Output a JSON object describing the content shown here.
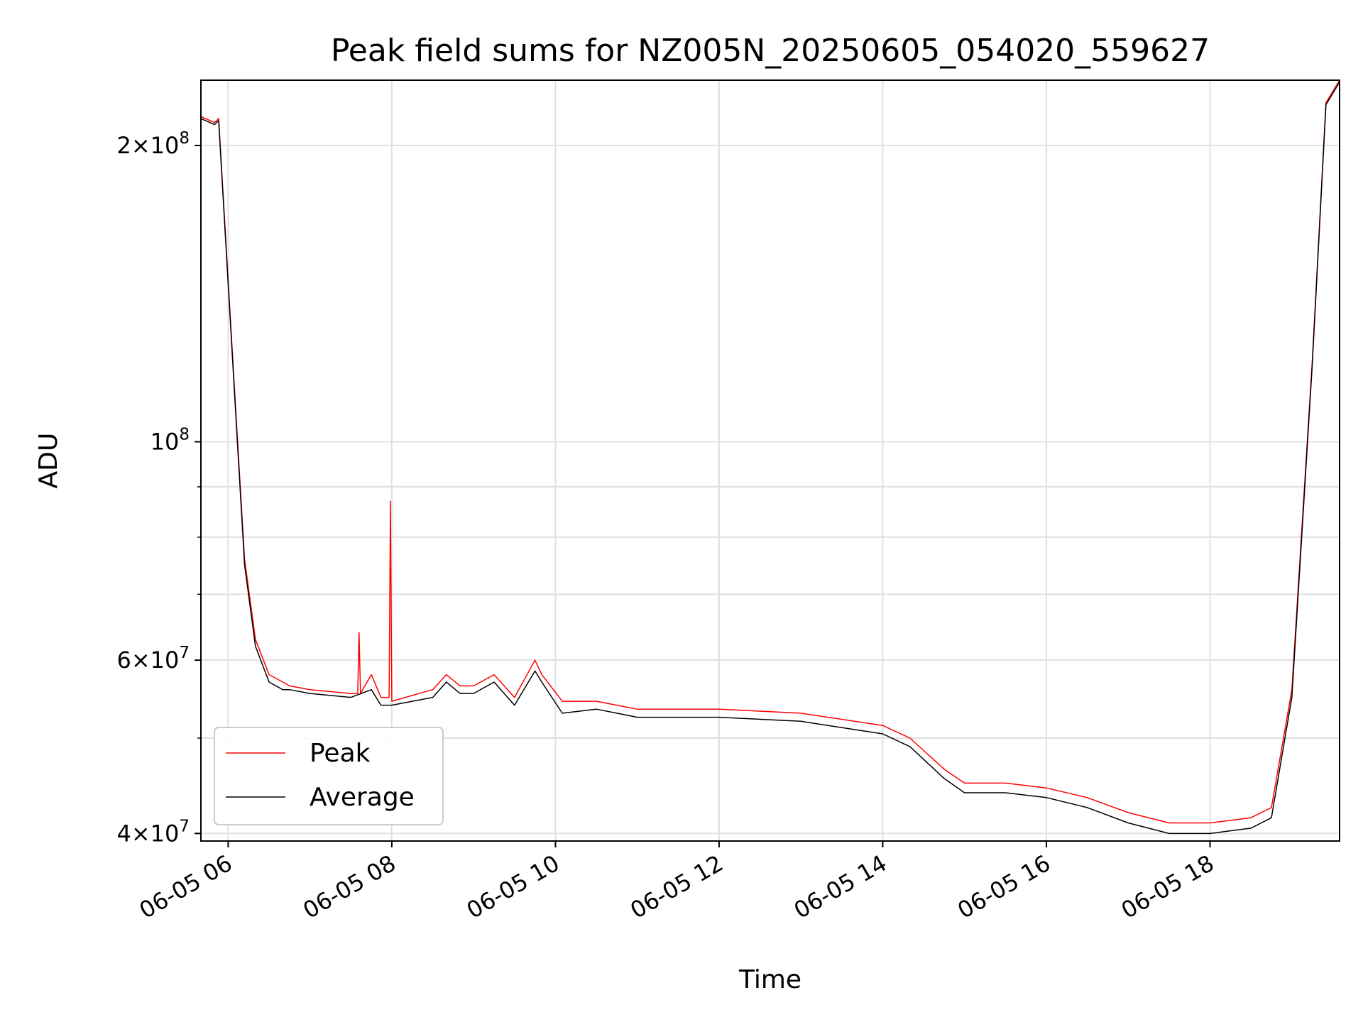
{
  "chart_data": {
    "type": "line",
    "title": "Peak field sums for NZ005N_20250605_054020_559627",
    "xlabel": "Time",
    "ylabel": "ADU",
    "yscale": "log",
    "xlim": [
      "2025-06-05 05:40",
      "2025-06-05 19:35"
    ],
    "ylim": [
      39300000,
      233000000
    ],
    "xticks": [
      "06-05 06",
      "06-05 08",
      "06-05 10",
      "06-05 12",
      "06-05 14",
      "06-05 16",
      "06-05 18"
    ],
    "xtick_values": [
      "2025-06-05 06:00",
      "2025-06-05 08:00",
      "2025-06-05 10:00",
      "2025-06-05 12:00",
      "2025-06-05 14:00",
      "2025-06-05 16:00",
      "2025-06-05 18:00"
    ],
    "yticks": [
      {
        "value": 200000000,
        "mant": "2",
        "exp": "8"
      },
      {
        "value": 100000000,
        "mant": "",
        "exp": "8"
      },
      {
        "value": 60000000,
        "mant": "6",
        "exp": "7"
      },
      {
        "value": 40000000,
        "mant": "4",
        "exp": "7"
      }
    ],
    "grid": true,
    "legend": {
      "position": "lower-left",
      "entries": [
        "Peak",
        "Average"
      ]
    },
    "colors": {
      "Peak": "#ff0000",
      "Average": "#000000",
      "grid": "#e0e0e0"
    },
    "series": [
      {
        "name": "Average",
        "x": [
          "2025-06-05 05:40",
          "2025-06-05 05:50",
          "2025-06-05 05:53",
          "2025-06-05 06:05",
          "2025-06-05 06:12",
          "2025-06-05 06:20",
          "2025-06-05 06:30",
          "2025-06-05 06:40",
          "2025-06-05 06:45",
          "2025-06-05 07:00",
          "2025-06-05 07:30",
          "2025-06-05 07:45",
          "2025-06-05 07:52",
          "2025-06-05 08:00",
          "2025-06-05 08:30",
          "2025-06-05 08:40",
          "2025-06-05 08:50",
          "2025-06-05 09:00",
          "2025-06-05 09:15",
          "2025-06-05 09:30",
          "2025-06-05 09:45",
          "2025-06-05 09:50",
          "2025-06-05 10:05",
          "2025-06-05 10:30",
          "2025-06-05 10:45",
          "2025-06-05 11:00",
          "2025-06-05 12:00",
          "2025-06-05 13:00",
          "2025-06-05 14:00",
          "2025-06-05 14:20",
          "2025-06-05 14:45",
          "2025-06-05 15:00",
          "2025-06-05 15:30",
          "2025-06-05 16:00",
          "2025-06-05 16:30",
          "2025-06-05 17:00",
          "2025-06-05 17:30",
          "2025-06-05 18:00",
          "2025-06-05 18:30",
          "2025-06-05 18:45",
          "2025-06-05 19:00",
          "2025-06-05 19:15",
          "2025-06-05 19:25",
          "2025-06-05 19:35"
        ],
        "values": [
          213000000,
          210000000,
          212000000,
          110000000,
          75000000,
          62000000,
          57000000,
          56000000,
          56000000,
          55500000,
          55000000,
          56000000,
          54000000,
          54000000,
          55000000,
          57000000,
          55500000,
          55500000,
          57000000,
          54000000,
          58500000,
          57000000,
          53000000,
          53500000,
          53000000,
          52500000,
          52500000,
          52000000,
          50500000,
          49000000,
          45500000,
          44000000,
          44000000,
          43500000,
          42500000,
          41000000,
          40000000,
          40000000,
          40500000,
          41500000,
          55000000,
          120000000,
          220000000,
          232000000
        ]
      },
      {
        "name": "Peak",
        "x": [
          "2025-06-05 05:40",
          "2025-06-05 05:50",
          "2025-06-05 05:53",
          "2025-06-05 06:05",
          "2025-06-05 06:12",
          "2025-06-05 06:20",
          "2025-06-05 06:30",
          "2025-06-05 06:40",
          "2025-06-05 06:45",
          "2025-06-05 07:00",
          "2025-06-05 07:30",
          "2025-06-05 07:35",
          "2025-06-05 07:36",
          "2025-06-05 07:37",
          "2025-06-05 07:45",
          "2025-06-05 07:52",
          "2025-06-05 07:58",
          "2025-06-05 07:59",
          "2025-06-05 08:00",
          "2025-06-05 08:30",
          "2025-06-05 08:40",
          "2025-06-05 08:50",
          "2025-06-05 09:00",
          "2025-06-05 09:15",
          "2025-06-05 09:30",
          "2025-06-05 09:45",
          "2025-06-05 09:50",
          "2025-06-05 10:05",
          "2025-06-05 10:30",
          "2025-06-05 10:45",
          "2025-06-05 11:00",
          "2025-06-05 12:00",
          "2025-06-05 13:00",
          "2025-06-05 14:00",
          "2025-06-05 14:20",
          "2025-06-05 14:45",
          "2025-06-05 15:00",
          "2025-06-05 15:30",
          "2025-06-05 16:00",
          "2025-06-05 16:30",
          "2025-06-05 17:00",
          "2025-06-05 17:30",
          "2025-06-05 18:00",
          "2025-06-05 18:30",
          "2025-06-05 18:45",
          "2025-06-05 19:00",
          "2025-06-05 19:15",
          "2025-06-05 19:25",
          "2025-06-05 19:35"
        ],
        "values": [
          214000000,
          211000000,
          213000000,
          111000000,
          76000000,
          63000000,
          58000000,
          57000000,
          56500000,
          56000000,
          55500000,
          55500000,
          64000000,
          55500000,
          58000000,
          55000000,
          55000000,
          87000000,
          54500000,
          56000000,
          58000000,
          56500000,
          56500000,
          58000000,
          55000000,
          60000000,
          58000000,
          54500000,
          54500000,
          54000000,
          53500000,
          53500000,
          53000000,
          51500000,
          50000000,
          46500000,
          45000000,
          45000000,
          44500000,
          43500000,
          42000000,
          41000000,
          41000000,
          41500000,
          42500000,
          56000000,
          121000000,
          221000000,
          233000000
        ]
      }
    ]
  }
}
